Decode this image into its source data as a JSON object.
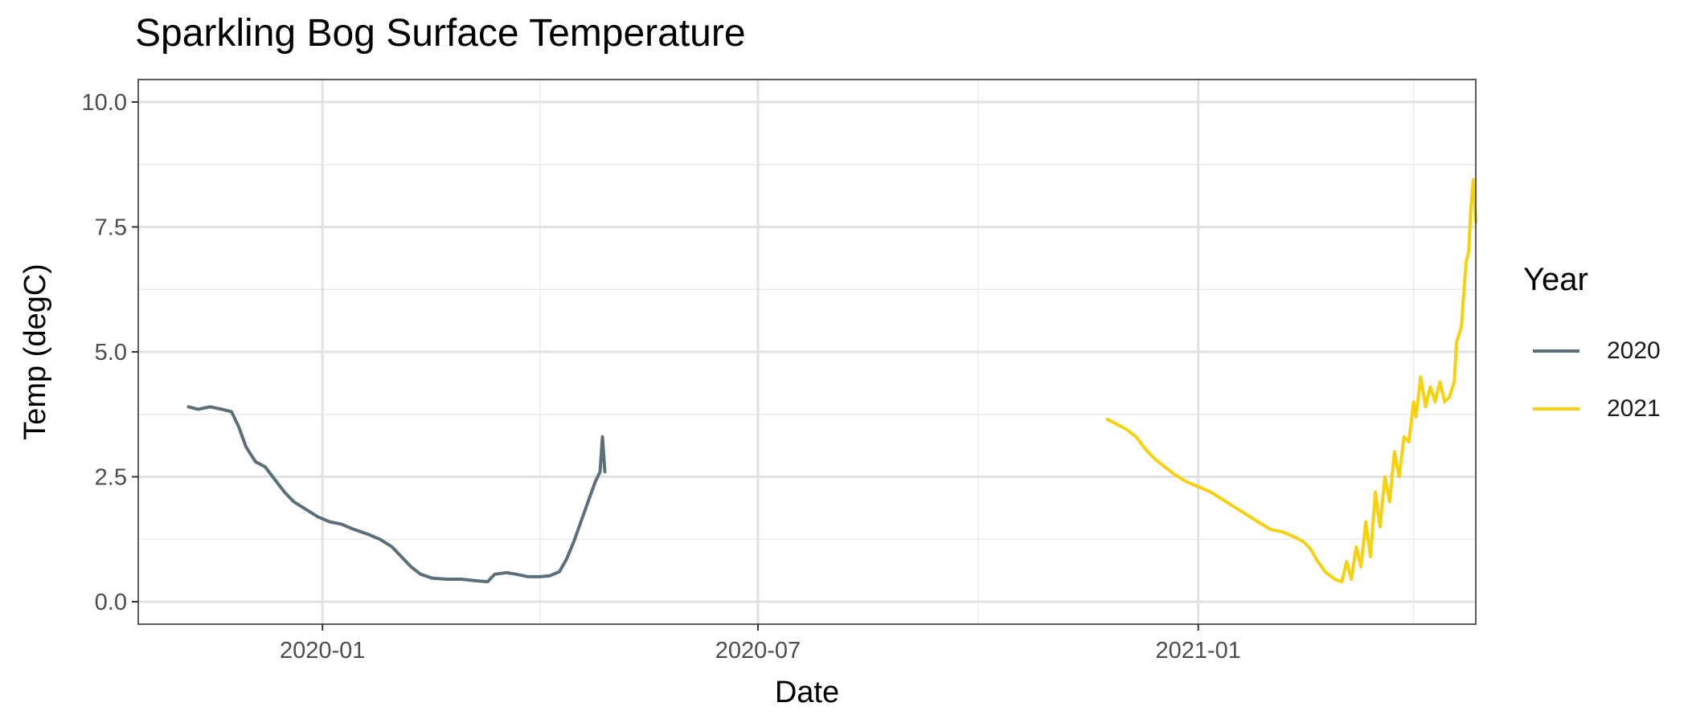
{
  "chart_data": {
    "type": "line",
    "title": "Sparkling Bog Surface Temperature",
    "xlabel": "Date",
    "ylabel": "Temp (degC)",
    "x_type": "date",
    "xlim": [
      "2019-10-16",
      "2021-04-27"
    ],
    "ylim": [
      -0.45,
      10.45
    ],
    "x_ticks": [
      {
        "date": "2020-01-01",
        "label": "2020-01"
      },
      {
        "date": "2020-07-01",
        "label": "2020-07"
      },
      {
        "date": "2021-01-01",
        "label": "2021-01"
      }
    ],
    "x_minor_ticks": [
      "2019-10-01",
      "2020-04-01",
      "2020-10-01",
      "2021-04-01"
    ],
    "y_ticks": [
      0,
      2.5,
      5,
      7.5,
      10
    ],
    "y_tick_labels": [
      "0.0",
      "2.5",
      "5.0",
      "7.5",
      "10.0"
    ],
    "grid": true,
    "legend": {
      "title": "Year",
      "position": "right"
    },
    "series": [
      {
        "name": "2020",
        "color": "#5a6f7a",
        "points": [
          [
            "2019-11-06",
            3.9
          ],
          [
            "2019-11-10",
            3.85
          ],
          [
            "2019-11-15",
            3.9
          ],
          [
            "2019-11-20",
            3.85
          ],
          [
            "2019-11-24",
            3.8
          ],
          [
            "2019-11-27",
            3.5
          ],
          [
            "2019-11-30",
            3.1
          ],
          [
            "2019-12-04",
            2.8
          ],
          [
            "2019-12-08",
            2.7
          ],
          [
            "2019-12-12",
            2.45
          ],
          [
            "2019-12-16",
            2.2
          ],
          [
            "2019-12-20",
            2.0
          ],
          [
            "2019-12-25",
            1.85
          ],
          [
            "2019-12-30",
            1.7
          ],
          [
            "2020-01-04",
            1.6
          ],
          [
            "2020-01-09",
            1.55
          ],
          [
            "2020-01-14",
            1.45
          ],
          [
            "2020-01-20",
            1.35
          ],
          [
            "2020-01-25",
            1.25
          ],
          [
            "2020-01-30",
            1.1
          ],
          [
            "2020-02-03",
            0.9
          ],
          [
            "2020-02-07",
            0.7
          ],
          [
            "2020-02-11",
            0.55
          ],
          [
            "2020-02-16",
            0.47
          ],
          [
            "2020-02-22",
            0.45
          ],
          [
            "2020-02-28",
            0.45
          ],
          [
            "2020-03-05",
            0.42
          ],
          [
            "2020-03-10",
            0.4
          ],
          [
            "2020-03-13",
            0.55
          ],
          [
            "2020-03-18",
            0.58
          ],
          [
            "2020-03-22",
            0.55
          ],
          [
            "2020-03-27",
            0.5
          ],
          [
            "2020-04-01",
            0.5
          ],
          [
            "2020-04-05",
            0.52
          ],
          [
            "2020-04-09",
            0.6
          ],
          [
            "2020-04-12",
            0.85
          ],
          [
            "2020-04-15",
            1.2
          ],
          [
            "2020-04-18",
            1.6
          ],
          [
            "2020-04-21",
            2.0
          ],
          [
            "2020-04-24",
            2.4
          ],
          [
            "2020-04-26",
            2.6
          ],
          [
            "2020-04-27",
            3.3
          ],
          [
            "2020-04-28",
            2.6
          ]
        ]
      },
      {
        "name": "2021",
        "color": "#f6d10d",
        "points": [
          [
            "2020-11-24",
            3.65
          ],
          [
            "2020-11-28",
            3.55
          ],
          [
            "2020-12-02",
            3.45
          ],
          [
            "2020-12-06",
            3.3
          ],
          [
            "2020-12-10",
            3.05
          ],
          [
            "2020-12-14",
            2.85
          ],
          [
            "2020-12-18",
            2.7
          ],
          [
            "2020-12-22",
            2.55
          ],
          [
            "2020-12-27",
            2.4
          ],
          [
            "2021-01-01",
            2.3
          ],
          [
            "2021-01-06",
            2.2
          ],
          [
            "2021-01-11",
            2.05
          ],
          [
            "2021-01-16",
            1.9
          ],
          [
            "2021-01-21",
            1.75
          ],
          [
            "2021-01-26",
            1.6
          ],
          [
            "2021-01-31",
            1.45
          ],
          [
            "2021-02-05",
            1.4
          ],
          [
            "2021-02-10",
            1.3
          ],
          [
            "2021-02-14",
            1.2
          ],
          [
            "2021-02-17",
            1.05
          ],
          [
            "2021-02-20",
            0.8
          ],
          [
            "2021-02-23",
            0.6
          ],
          [
            "2021-02-27",
            0.45
          ],
          [
            "2021-03-02",
            0.4
          ],
          [
            "2021-03-04",
            0.8
          ],
          [
            "2021-03-06",
            0.45
          ],
          [
            "2021-03-08",
            1.1
          ],
          [
            "2021-03-10",
            0.7
          ],
          [
            "2021-03-12",
            1.6
          ],
          [
            "2021-03-14",
            0.9
          ],
          [
            "2021-03-16",
            2.2
          ],
          [
            "2021-03-18",
            1.5
          ],
          [
            "2021-03-20",
            2.5
          ],
          [
            "2021-03-22",
            2.0
          ],
          [
            "2021-03-24",
            3.0
          ],
          [
            "2021-03-26",
            2.5
          ],
          [
            "2021-03-28",
            3.3
          ],
          [
            "2021-03-30",
            3.2
          ],
          [
            "2021-04-01",
            4.0
          ],
          [
            "2021-04-02",
            3.7
          ],
          [
            "2021-04-04",
            4.5
          ],
          [
            "2021-04-06",
            3.9
          ],
          [
            "2021-04-08",
            4.3
          ],
          [
            "2021-04-10",
            4.0
          ],
          [
            "2021-04-12",
            4.4
          ],
          [
            "2021-04-14",
            4.0
          ],
          [
            "2021-04-16",
            4.1
          ],
          [
            "2021-04-18",
            4.4
          ],
          [
            "2021-04-19",
            5.2
          ],
          [
            "2021-04-21",
            5.5
          ],
          [
            "2021-04-22",
            6.2
          ],
          [
            "2021-04-23",
            6.8
          ],
          [
            "2021-04-24",
            7.0
          ],
          [
            "2021-04-25",
            7.9
          ],
          [
            "2021-04-26",
            8.45
          ],
          [
            "2021-04-27",
            7.6
          ]
        ]
      }
    ]
  }
}
